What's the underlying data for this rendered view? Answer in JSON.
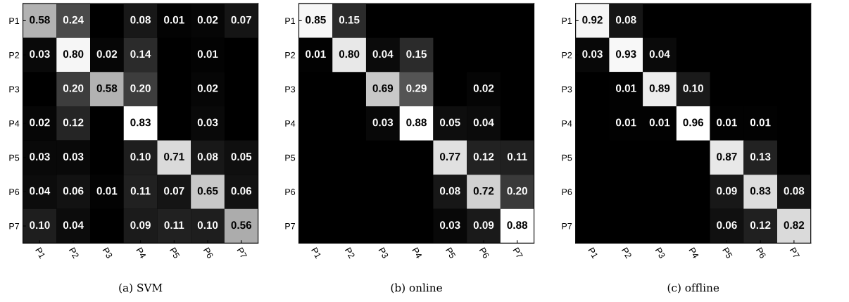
{
  "chart_data": [
    {
      "type": "heatmap",
      "annotations": [
        "(a) SVM"
      ],
      "categories": [
        "P1",
        "P2",
        "P3",
        "P4",
        "P5",
        "P6",
        "P7"
      ],
      "y_categories": [
        "P1",
        "P2",
        "P3",
        "P4",
        "P5",
        "P6",
        "P7"
      ],
      "cells": [
        [
          0.58,
          0.24,
          null,
          0.08,
          0.01,
          0.02,
          0.07
        ],
        [
          0.03,
          0.8,
          0.02,
          0.14,
          null,
          0.01,
          null
        ],
        [
          null,
          0.2,
          0.58,
          0.2,
          null,
          0.02,
          null
        ],
        [
          0.02,
          0.12,
          null,
          0.83,
          null,
          0.03,
          null
        ],
        [
          0.03,
          0.03,
          null,
          0.1,
          0.71,
          0.08,
          0.05
        ],
        [
          0.04,
          0.06,
          0.01,
          0.11,
          0.07,
          0.65,
          0.06
        ],
        [
          0.1,
          0.04,
          null,
          0.09,
          0.11,
          0.1,
          0.56
        ]
      ],
      "cell_labels": [
        [
          "0.58",
          "0.24",
          null,
          "0.08",
          "0.01",
          "0.02",
          "0.07"
        ],
        [
          "0.03",
          "0.80",
          "0.02",
          "0.14",
          null,
          "0.01",
          null
        ],
        [
          null,
          "0.20",
          "0.58",
          "0.20",
          null,
          "0.02",
          null
        ],
        [
          "0.02",
          "0.12",
          null,
          "0.83",
          null,
          "0.03",
          null
        ],
        [
          "0.03",
          "0.03",
          null,
          "0.10",
          "0.71",
          "0.08",
          "0.05"
        ],
        [
          "0.04",
          "0.06",
          "0.01",
          "0.11",
          "0.07",
          "0.65",
          "0.06"
        ],
        [
          "0.10",
          "0.04",
          null,
          "0.09",
          "0.11",
          "0.10",
          "0.56"
        ]
      ]
    },
    {
      "type": "heatmap",
      "annotations": [
        "(b) online"
      ],
      "categories": [
        "P1",
        "P2",
        "P3",
        "P4",
        "P5",
        "P6",
        "P7"
      ],
      "y_categories": [
        "P1",
        "P2",
        "P3",
        "P4",
        "P5",
        "P6",
        "P7"
      ],
      "cells": [
        [
          0.85,
          0.15,
          null,
          null,
          null,
          null,
          null
        ],
        [
          0.01,
          0.8,
          0.04,
          0.15,
          null,
          null,
          null
        ],
        [
          null,
          null,
          0.69,
          0.29,
          null,
          0.02,
          null
        ],
        [
          null,
          null,
          0.03,
          0.88,
          0.05,
          0.04,
          null
        ],
        [
          null,
          null,
          null,
          null,
          0.77,
          0.12,
          0.11
        ],
        [
          null,
          null,
          null,
          null,
          0.08,
          0.72,
          0.2
        ],
        [
          null,
          null,
          null,
          null,
          0.03,
          0.09,
          0.88
        ]
      ],
      "cell_labels": [
        [
          "0.85",
          "0.15",
          null,
          null,
          null,
          null,
          null
        ],
        [
          "0.01",
          "0.80",
          "0.04",
          "0.15",
          null,
          null,
          null
        ],
        [
          null,
          null,
          "0.69",
          "0.29",
          null,
          "0.02",
          null
        ],
        [
          null,
          null,
          "0.03",
          "0.88",
          "0.05",
          "0.04",
          null
        ],
        [
          null,
          null,
          null,
          null,
          "0.77",
          "0.12",
          "0.11"
        ],
        [
          null,
          null,
          null,
          null,
          "0.08",
          "0.72",
          "0.20"
        ],
        [
          null,
          null,
          null,
          null,
          "0.03",
          "0.09",
          "0.88"
        ]
      ]
    },
    {
      "type": "heatmap",
      "annotations": [
        "(c) offline"
      ],
      "categories": [
        "P1",
        "P2",
        "P3",
        "P4",
        "P5",
        "P6",
        "P7"
      ],
      "y_categories": [
        "P1",
        "P2",
        "P3",
        "P4",
        "P5",
        "P6",
        "P7"
      ],
      "cells": [
        [
          0.92,
          0.08,
          null,
          null,
          null,
          null,
          null
        ],
        [
          0.03,
          0.93,
          0.04,
          null,
          null,
          null,
          null
        ],
        [
          null,
          0.01,
          0.89,
          0.1,
          null,
          null,
          null
        ],
        [
          null,
          0.01,
          0.01,
          0.96,
          0.01,
          0.01,
          null
        ],
        [
          null,
          null,
          null,
          null,
          0.87,
          0.13,
          null
        ],
        [
          null,
          null,
          null,
          null,
          0.09,
          0.83,
          0.08
        ],
        [
          null,
          null,
          null,
          null,
          0.06,
          0.12,
          0.82
        ]
      ],
      "cell_labels": [
        [
          "0.92",
          "0.08",
          null,
          null,
          null,
          null,
          null
        ],
        [
          "0.03",
          "0.93",
          "0.04",
          null,
          null,
          null,
          null
        ],
        [
          null,
          "0.01",
          "0.89",
          "0.10",
          null,
          null,
          null
        ],
        [
          null,
          "0.01",
          "0.01",
          "0.96",
          "0.01",
          "0.01",
          null
        ],
        [
          null,
          null,
          null,
          null,
          "0.87",
          "0.13",
          null
        ],
        [
          null,
          null,
          null,
          null,
          "0.09",
          "0.83",
          "0.08"
        ],
        [
          null,
          null,
          null,
          null,
          "0.06",
          "0.12",
          "0.82"
        ]
      ]
    }
  ]
}
